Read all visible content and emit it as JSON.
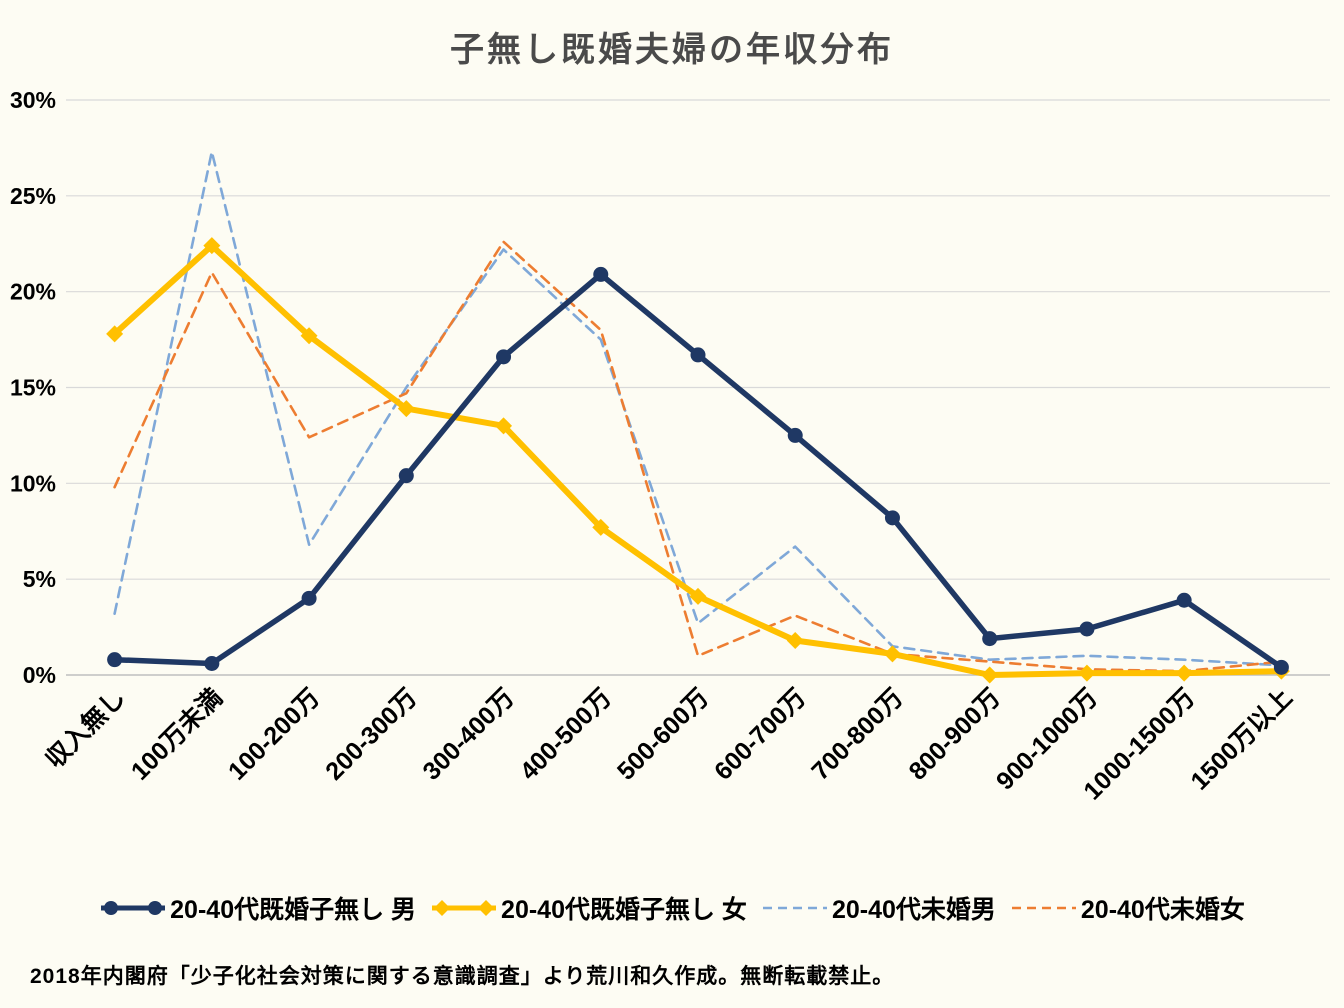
{
  "title": "子無し既婚夫婦の年収分布",
  "footer": "2018年内閣府「少子化社会対策に関する意識調査」より荒川和久作成。無断転載禁止。",
  "colors": {
    "background": "#fdfcf3",
    "gridline": "#d9d9d9",
    "axis_line": "#bfbfbf",
    "title_text": "#4a4a4a",
    "married_male": "#1f3864",
    "married_female": "#ffc000",
    "unmarried_male": "#7fa8d8",
    "unmarried_female": "#ed7d31"
  },
  "chart_data": {
    "type": "line",
    "title": "子無し既婚夫婦の年収分布",
    "categories": [
      "収入無し",
      "100万未満",
      "100-200万",
      "200-300万",
      "300-400万",
      "400-500万",
      "500-600万",
      "600-700万",
      "700-800万",
      "800-900万",
      "900-1000万",
      "1000-1500万",
      "1500万以上"
    ],
    "series": [
      {
        "name": "20-40代既婚子無し 男",
        "color": "#1f3864",
        "style": "solid",
        "marker": "circle",
        "values": [
          0.8,
          0.6,
          4.0,
          10.4,
          16.6,
          20.9,
          16.7,
          12.5,
          8.2,
          1.9,
          2.4,
          3.9,
          0.4
        ]
      },
      {
        "name": "20-40代既婚子無し 女",
        "color": "#ffc000",
        "style": "solid",
        "marker": "diamond",
        "values": [
          17.8,
          22.4,
          17.7,
          13.9,
          13.0,
          7.7,
          4.1,
          1.8,
          1.1,
          0.0,
          0.1,
          0.1,
          0.2
        ]
      },
      {
        "name": "20-40代未婚男",
        "color": "#7fa8d8",
        "style": "dashed",
        "marker": "none",
        "values": [
          3.2,
          27.3,
          6.8,
          15.0,
          22.2,
          17.5,
          2.7,
          6.7,
          1.5,
          0.8,
          1.0,
          0.8,
          0.5
        ]
      },
      {
        "name": "20-40代未婚女",
        "color": "#ed7d31",
        "style": "dashed",
        "marker": "none",
        "values": [
          9.8,
          21.0,
          12.4,
          14.7,
          22.6,
          18.0,
          1.0,
          3.1,
          1.1,
          0.7,
          0.3,
          0.2,
          0.7
        ]
      }
    ],
    "ylim": [
      0,
      30
    ],
    "ytick_step": 5,
    "ytick_format": "percent",
    "grid": true,
    "legend_position": "bottom",
    "x_label_rotation": -45
  }
}
